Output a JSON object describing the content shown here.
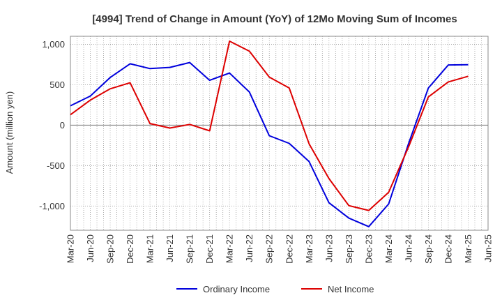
{
  "chart_data": {
    "type": "line",
    "title": "[4994]  Trend of Change in Amount (YoY) of 12Mo Moving Sum of Incomes",
    "xlabel": "",
    "ylabel": "Amount (million yen)",
    "ylim": [
      -1300,
      1100
    ],
    "yticks": [
      1000,
      500,
      0,
      -500,
      -1000
    ],
    "ytick_labels": [
      "1,000",
      "500",
      "0",
      "-500",
      "-1,000"
    ],
    "xtick_labels": [
      "Mar-20",
      "Jun-20",
      "Sep-20",
      "Dec-20",
      "Mar-21",
      "Jun-21",
      "Sep-21",
      "Dec-21",
      "Mar-22",
      "Jun-22",
      "Sep-22",
      "Dec-22",
      "Mar-23",
      "Jun-23",
      "Sep-23",
      "Dec-23",
      "Mar-24",
      "Jun-24",
      "Sep-24",
      "Dec-24",
      "Mar-25",
      "Jun-25"
    ],
    "categories": [
      "Mar-20",
      "Jun-20",
      "Sep-20",
      "Dec-20",
      "Mar-21",
      "Jun-21",
      "Sep-21",
      "Dec-21",
      "Mar-22",
      "Jun-22",
      "Sep-22",
      "Dec-22",
      "Mar-23",
      "Jun-23",
      "Sep-23",
      "Dec-23",
      "Mar-24",
      "Jun-24",
      "Sep-24",
      "Dec-24",
      "Mar-25"
    ],
    "series": [
      {
        "name": "Ordinary Income",
        "color": "#0000dd",
        "values": [
          240,
          360,
          590,
          760,
          700,
          715,
          775,
          555,
          645,
          410,
          -130,
          -225,
          -450,
          -960,
          -1150,
          -1255,
          -975,
          -230,
          460,
          745,
          748
        ]
      },
      {
        "name": "Net Income",
        "color": "#dd0000",
        "values": [
          130,
          310,
          450,
          525,
          20,
          -35,
          10,
          -70,
          1040,
          915,
          595,
          460,
          -230,
          -660,
          -995,
          -1055,
          -830,
          -270,
          350,
          535,
          605
        ]
      }
    ],
    "legend_position": "bottom-center",
    "grid": true
  }
}
